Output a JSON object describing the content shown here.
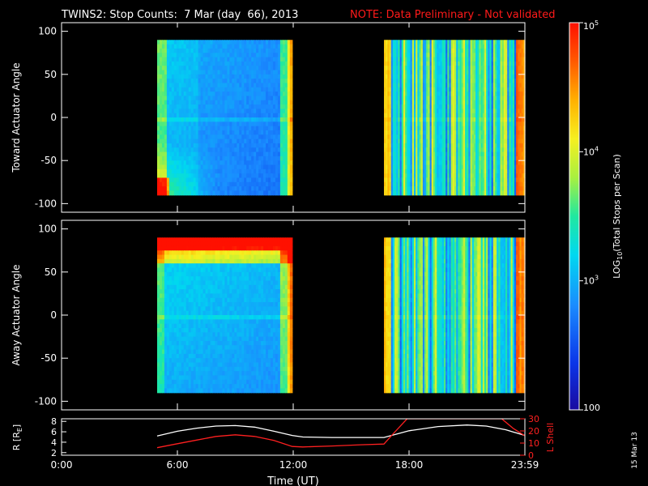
{
  "header": {
    "title": "TWINS2: Stop Counts:  7 Mar (day  66), 2013",
    "note": "NOTE: Data Preliminary - Not validated"
  },
  "side_stamp": "15 Mar 13",
  "colors": {
    "background": "#000000",
    "note": "#ff1a1a",
    "r_line": "#ffffff",
    "l_line": "#ff2020",
    "l_axis": "#ff2020"
  },
  "chart_data": [
    {
      "type": "heatmap",
      "panel": "top",
      "ylabel": "Toward Actuator Angle",
      "ylim": [
        -110,
        110
      ],
      "yticks": [
        "100",
        "50",
        "0",
        "-50",
        "-100"
      ],
      "x_coverage_hours": [
        [
          4.95,
          11.95
        ],
        [
          16.7,
          24.0
        ]
      ],
      "y_coverage_deg": [
        -90,
        90
      ],
      "colorscale": "log10",
      "zlim": [
        100,
        100000
      ]
    },
    {
      "type": "heatmap",
      "panel": "bottom",
      "ylabel": "Away Actuator Angle",
      "ylim": [
        -110,
        110
      ],
      "yticks": [
        "100",
        "50",
        "0",
        "-50",
        "-100"
      ],
      "x_coverage_hours": [
        [
          4.95,
          11.95
        ],
        [
          16.7,
          24.0
        ]
      ],
      "y_coverage_deg": [
        -90,
        90
      ],
      "colorscale": "log10",
      "zlim": [
        100,
        100000
      ]
    },
    {
      "type": "line",
      "panel": "orbit",
      "xlabel": "Time (UT)",
      "x_ticks": [
        "0:00",
        "6:00",
        "12:00",
        "18:00",
        "23:59"
      ],
      "ylabel_left": "R [R",
      "ylabel_left_sub": "E",
      "ylabel_left_close": "]",
      "ylabel_right": "L Shell",
      "left_yticks": [
        "8",
        "6",
        "4",
        "2"
      ],
      "right_yticks": [
        "30",
        "20",
        "10",
        "0"
      ],
      "left_ylim": [
        1.5,
        8.5
      ],
      "right_ylim": [
        0,
        30
      ],
      "series": [
        {
          "axis": "left",
          "x": [
            4.95,
            6.0,
            7.0,
            8.0,
            9.0,
            10.0,
            11.0,
            11.95,
            12.5,
            14.0,
            15.5,
            16.7,
            18.0,
            19.5,
            21.0,
            22.0,
            23.0,
            24.0
          ],
          "y": [
            5.2,
            6.1,
            6.7,
            7.1,
            7.2,
            6.9,
            6.1,
            5.3,
            5.0,
            4.9,
            4.9,
            4.9,
            6.2,
            7.0,
            7.3,
            7.1,
            6.4,
            5.3
          ]
        },
        {
          "axis": "right",
          "x": [
            4.95,
            6.0,
            7.0,
            8.0,
            9.0,
            10.0,
            11.0,
            11.95,
            12.5,
            14.0,
            15.5,
            16.7,
            17.2,
            17.9,
            22.8,
            23.4,
            24.0
          ],
          "y": [
            6.2,
            9.5,
            12.5,
            15.5,
            16.8,
            15.5,
            12.2,
            7.2,
            6.8,
            7.6,
            8.6,
            9.2,
            18.0,
            30.0,
            30.0,
            22.0,
            16.0
          ]
        }
      ]
    }
  ],
  "colorbar": {
    "label": "LOG",
    "label_sub": "10",
    "label_rest": "(Total Stops per Scan)",
    "ticks": [
      {
        "base": "10",
        "exp": "5"
      },
      {
        "base": "10",
        "exp": "4"
      },
      {
        "base": "10",
        "exp": "3"
      },
      {
        "base": "100",
        "exp": ""
      }
    ]
  }
}
